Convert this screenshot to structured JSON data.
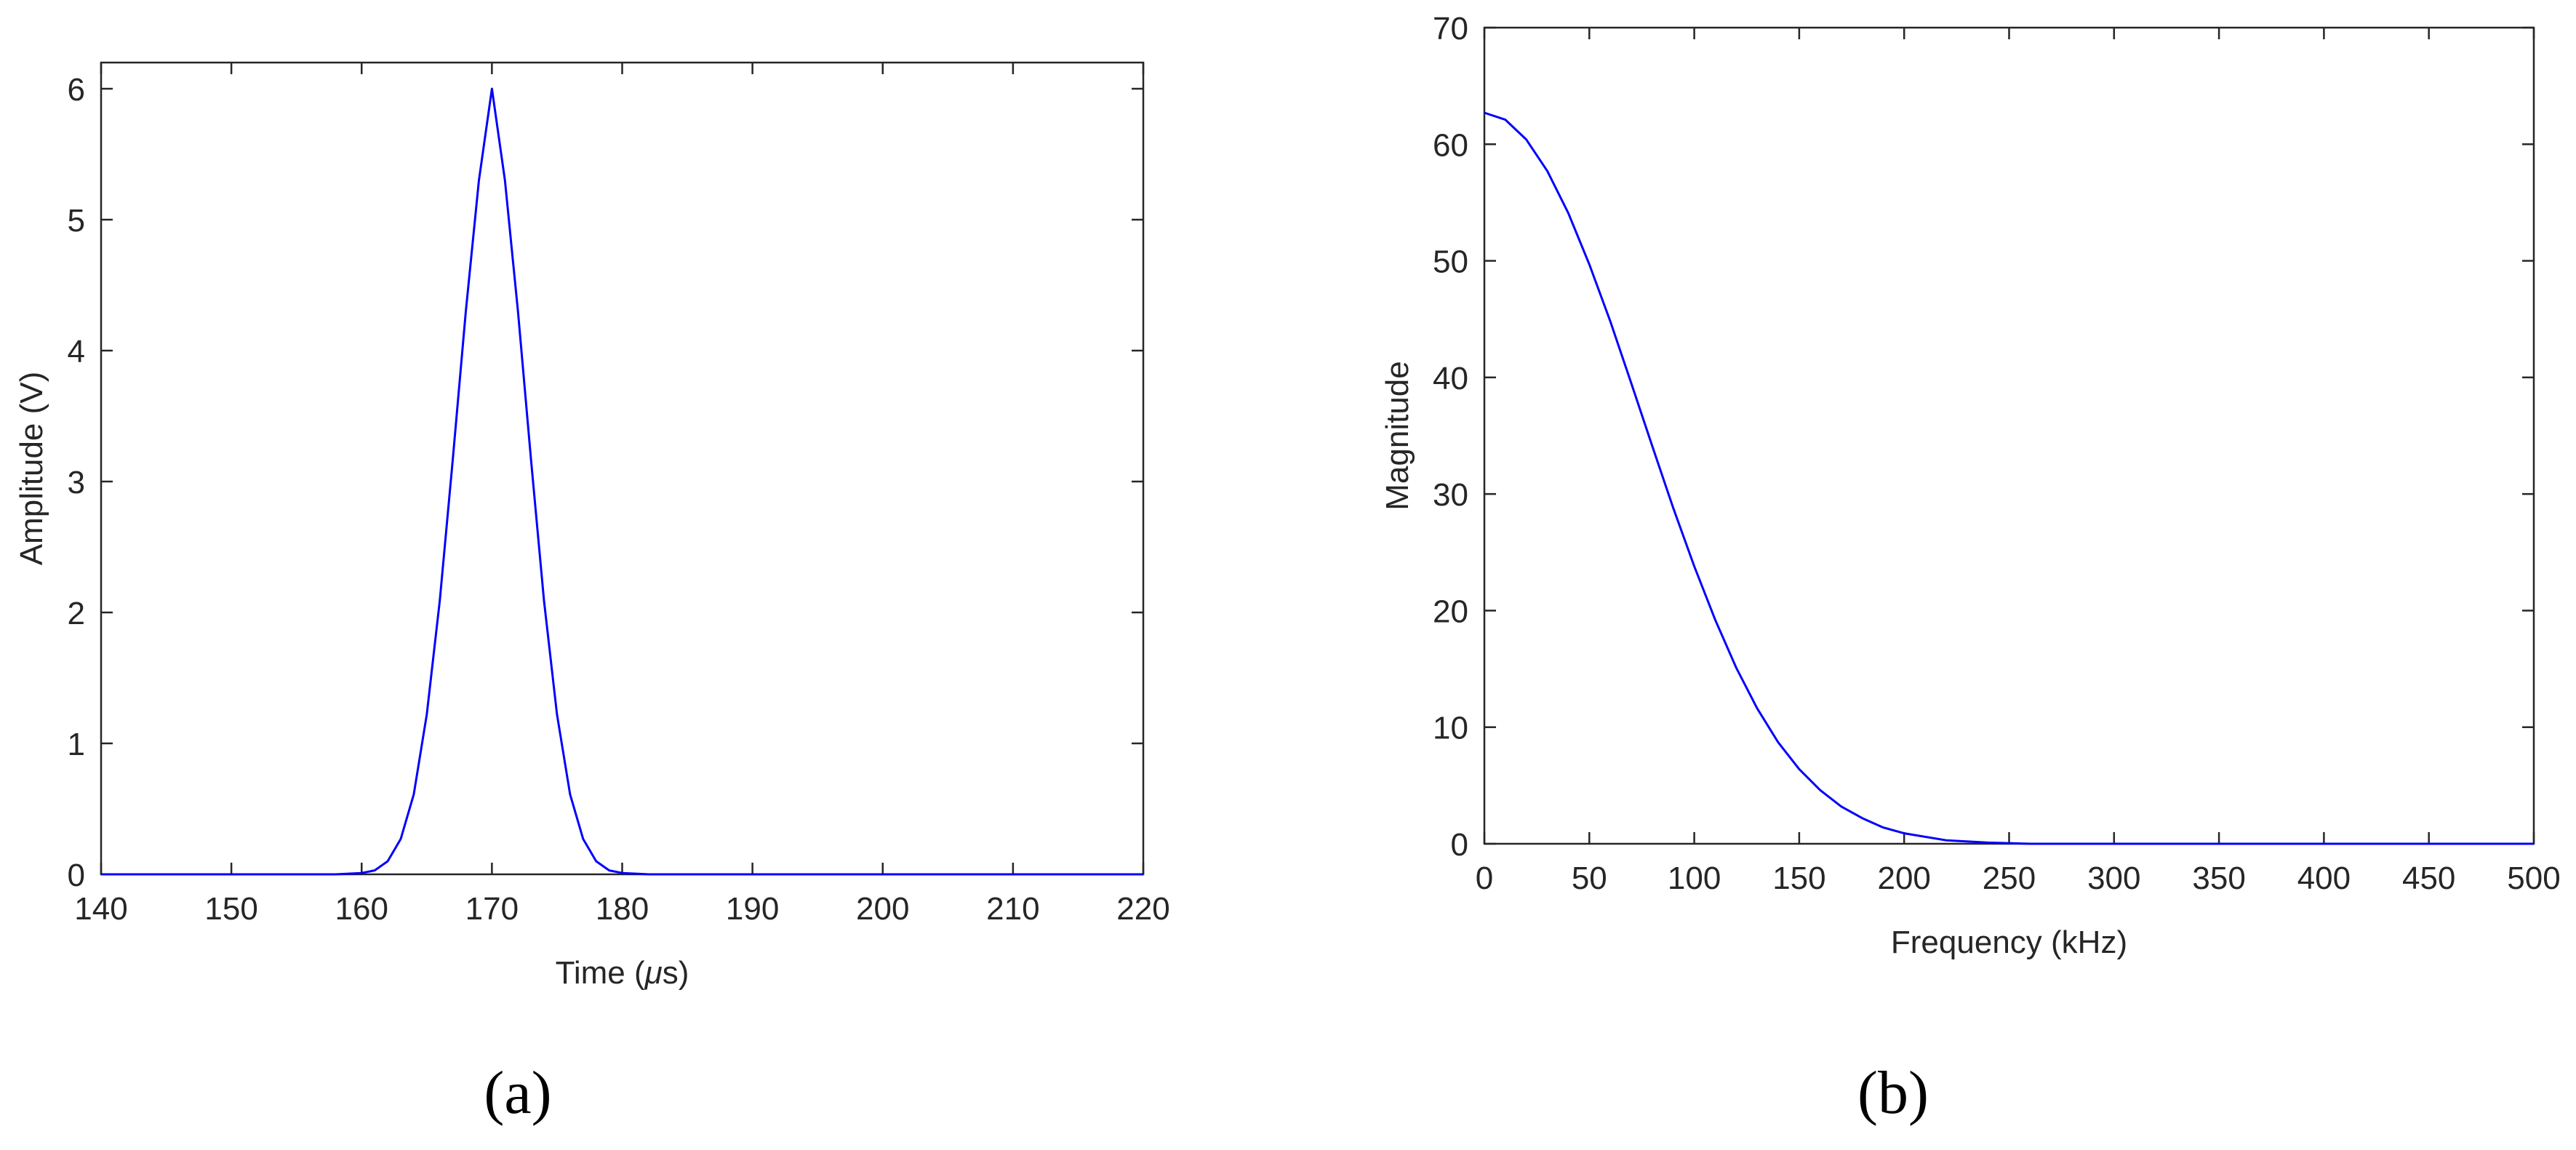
{
  "chart_data": [
    {
      "type": "line",
      "panel_label": "(a)",
      "title": "",
      "xlabel_prefix": "Time (",
      "xlabel_mu": "μ",
      "xlabel_suffix": "s)",
      "ylabel": "Amplitude (V)",
      "xlim": [
        140,
        220
      ],
      "ylim": [
        0,
        6.2
      ],
      "xticks": [
        140,
        150,
        160,
        170,
        180,
        190,
        200,
        210,
        220
      ],
      "yticks": [
        0,
        1,
        2,
        3,
        4,
        5,
        6
      ],
      "grid": false,
      "box": true,
      "series": [
        {
          "color": "#0000ff",
          "x": [
            140,
            158,
            160,
            161,
            162,
            163,
            164,
            165,
            166,
            167,
            168,
            169,
            170,
            171,
            172,
            173,
            174,
            175,
            176,
            177,
            178,
            179,
            180,
            182,
            220
          ],
          "y": [
            0,
            0,
            0.01,
            0.03,
            0.1,
            0.27,
            0.61,
            1.22,
            2.09,
            3.17,
            4.3,
            5.3,
            6.0,
            5.3,
            4.3,
            3.17,
            2.09,
            1.22,
            0.61,
            0.27,
            0.1,
            0.03,
            0.01,
            0,
            0
          ]
        }
      ]
    },
    {
      "type": "line",
      "panel_label": "(b)",
      "title": "",
      "xlabel": "Frequency (kHz)",
      "ylabel": "Magnitude",
      "xlim": [
        0,
        500
      ],
      "ylim": [
        0,
        70
      ],
      "xticks": [
        0,
        50,
        100,
        150,
        200,
        250,
        300,
        350,
        400,
        450,
        500
      ],
      "yticks": [
        0,
        10,
        20,
        30,
        40,
        50,
        60,
        70
      ],
      "grid": false,
      "box": true,
      "series": [
        {
          "color": "#0000ff",
          "x": [
            0,
            10,
            20,
            30,
            40,
            50,
            60,
            70,
            80,
            90,
            100,
            110,
            120,
            130,
            140,
            150,
            160,
            170,
            180,
            190,
            200,
            220,
            240,
            260,
            500
          ],
          "y": [
            62.7,
            62.1,
            60.4,
            57.7,
            54.1,
            49.7,
            44.8,
            39.5,
            34.1,
            28.8,
            23.8,
            19.2,
            15.1,
            11.6,
            8.7,
            6.4,
            4.6,
            3.2,
            2.2,
            1.4,
            0.9,
            0.3,
            0.1,
            0,
            0
          ]
        }
      ]
    }
  ]
}
